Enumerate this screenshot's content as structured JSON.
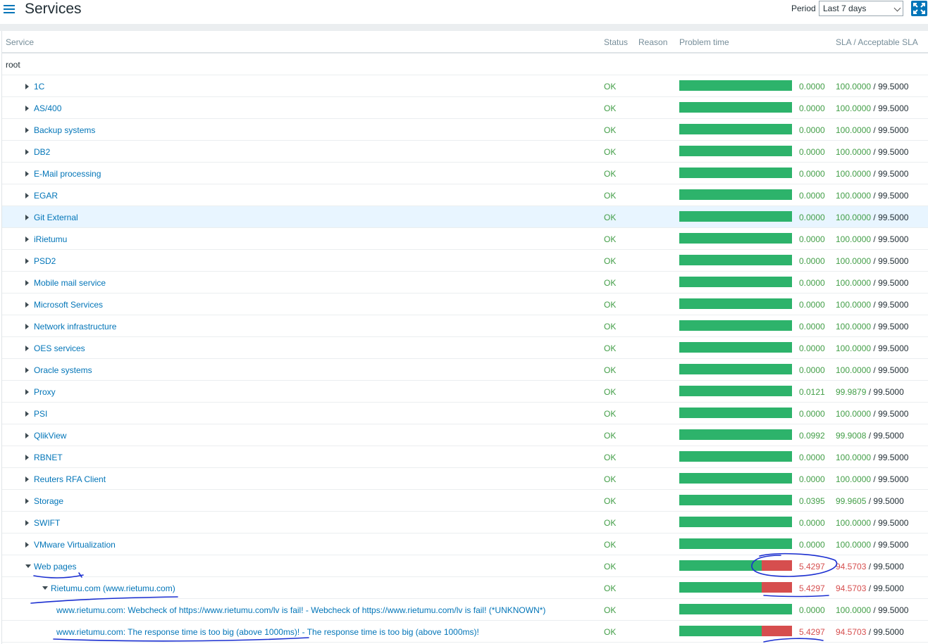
{
  "header": {
    "title": "Services",
    "period_label": "Period",
    "period_value": "Last 7 days"
  },
  "table": {
    "columns": {
      "service": "Service",
      "status": "Status",
      "reason": "Reason",
      "problem_time": "Problem time",
      "sla": "SLA / Acceptable SLA"
    },
    "root_label": "root",
    "rows": [
      {
        "name": "1C",
        "level": 1,
        "expand": "collapsed",
        "status": "OK",
        "problem_pct": 0,
        "problem_time": "0.0000",
        "sla": "100.0000",
        "acceptable_sla": "99.5000",
        "highlight": false
      },
      {
        "name": "AS/400",
        "level": 1,
        "expand": "collapsed",
        "status": "OK",
        "problem_pct": 0,
        "problem_time": "0.0000",
        "sla": "100.0000",
        "acceptable_sla": "99.5000",
        "highlight": false
      },
      {
        "name": "Backup systems",
        "level": 1,
        "expand": "collapsed",
        "status": "OK",
        "problem_pct": 0,
        "problem_time": "0.0000",
        "sla": "100.0000",
        "acceptable_sla": "99.5000",
        "highlight": false
      },
      {
        "name": "DB2",
        "level": 1,
        "expand": "collapsed",
        "status": "OK",
        "problem_pct": 0,
        "problem_time": "0.0000",
        "sla": "100.0000",
        "acceptable_sla": "99.5000",
        "highlight": false
      },
      {
        "name": "E-Mail processing",
        "level": 1,
        "expand": "collapsed",
        "status": "OK",
        "problem_pct": 0,
        "problem_time": "0.0000",
        "sla": "100.0000",
        "acceptable_sla": "99.5000",
        "highlight": false
      },
      {
        "name": "EGAR",
        "level": 1,
        "expand": "collapsed",
        "status": "OK",
        "problem_pct": 0,
        "problem_time": "0.0000",
        "sla": "100.0000",
        "acceptable_sla": "99.5000",
        "highlight": false
      },
      {
        "name": "Git External",
        "level": 1,
        "expand": "collapsed",
        "status": "OK",
        "problem_pct": 0,
        "problem_time": "0.0000",
        "sla": "100.0000",
        "acceptable_sla": "99.5000",
        "highlight": true
      },
      {
        "name": "iRietumu",
        "level": 1,
        "expand": "collapsed",
        "status": "OK",
        "problem_pct": 0,
        "problem_time": "0.0000",
        "sla": "100.0000",
        "acceptable_sla": "99.5000",
        "highlight": false
      },
      {
        "name": "PSD2",
        "level": 1,
        "expand": "collapsed",
        "status": "OK",
        "problem_pct": 0,
        "problem_time": "0.0000",
        "sla": "100.0000",
        "acceptable_sla": "99.5000",
        "highlight": false
      },
      {
        "name": "Mobile mail service",
        "level": 1,
        "expand": "collapsed",
        "status": "OK",
        "problem_pct": 0,
        "problem_time": "0.0000",
        "sla": "100.0000",
        "acceptable_sla": "99.5000",
        "highlight": false
      },
      {
        "name": "Microsoft Services",
        "level": 1,
        "expand": "collapsed",
        "status": "OK",
        "problem_pct": 0,
        "problem_time": "0.0000",
        "sla": "100.0000",
        "acceptable_sla": "99.5000",
        "highlight": false
      },
      {
        "name": "Network infrastructure",
        "level": 1,
        "expand": "collapsed",
        "status": "OK",
        "problem_pct": 0,
        "problem_time": "0.0000",
        "sla": "100.0000",
        "acceptable_sla": "99.5000",
        "highlight": false
      },
      {
        "name": "OES services",
        "level": 1,
        "expand": "collapsed",
        "status": "OK",
        "problem_pct": 0,
        "problem_time": "0.0000",
        "sla": "100.0000",
        "acceptable_sla": "99.5000",
        "highlight": false
      },
      {
        "name": "Oracle systems",
        "level": 1,
        "expand": "collapsed",
        "status": "OK",
        "problem_pct": 0,
        "problem_time": "0.0000",
        "sla": "100.0000",
        "acceptable_sla": "99.5000",
        "highlight": false
      },
      {
        "name": "Proxy",
        "level": 1,
        "expand": "collapsed",
        "status": "OK",
        "problem_pct": 0.0121,
        "problem_time": "0.0121",
        "sla": "99.9879",
        "acceptable_sla": "99.5000",
        "highlight": false
      },
      {
        "name": "PSI",
        "level": 1,
        "expand": "collapsed",
        "status": "OK",
        "problem_pct": 0,
        "problem_time": "0.0000",
        "sla": "100.0000",
        "acceptable_sla": "99.5000",
        "highlight": false
      },
      {
        "name": "QlikView",
        "level": 1,
        "expand": "collapsed",
        "status": "OK",
        "problem_pct": 0.0992,
        "problem_time": "0.0992",
        "sla": "99.9008",
        "acceptable_sla": "99.5000",
        "highlight": false
      },
      {
        "name": "RBNET",
        "level": 1,
        "expand": "collapsed",
        "status": "OK",
        "problem_pct": 0,
        "problem_time": "0.0000",
        "sla": "100.0000",
        "acceptable_sla": "99.5000",
        "highlight": false
      },
      {
        "name": "Reuters RFA Client",
        "level": 1,
        "expand": "collapsed",
        "status": "OK",
        "problem_pct": 0,
        "problem_time": "0.0000",
        "sla": "100.0000",
        "acceptable_sla": "99.5000",
        "highlight": false
      },
      {
        "name": "Storage",
        "level": 1,
        "expand": "collapsed",
        "status": "OK",
        "problem_pct": 0.0395,
        "problem_time": "0.0395",
        "sla": "99.9605",
        "acceptable_sla": "99.5000",
        "highlight": false
      },
      {
        "name": "SWIFT",
        "level": 1,
        "expand": "collapsed",
        "status": "OK",
        "problem_pct": 0,
        "problem_time": "0.0000",
        "sla": "100.0000",
        "acceptable_sla": "99.5000",
        "highlight": false
      },
      {
        "name": "VMware Virtualization",
        "level": 1,
        "expand": "collapsed",
        "status": "OK",
        "problem_pct": 0,
        "problem_time": "0.0000",
        "sla": "100.0000",
        "acceptable_sla": "99.5000",
        "highlight": false
      },
      {
        "name": "Web pages",
        "level": 1,
        "expand": "expanded",
        "status": "OK",
        "problem_pct": 5.4297,
        "problem_time": "5.4297",
        "sla": "94.5703",
        "acceptable_sla": "99.5000",
        "highlight": false
      },
      {
        "name": "Rietumu.com (www.rietumu.com)",
        "level": 2,
        "expand": "expanded",
        "status": "OK",
        "problem_pct": 5.4297,
        "problem_time": "5.4297",
        "sla": "94.5703",
        "acceptable_sla": "99.5000",
        "highlight": false
      },
      {
        "name": "www.rietumu.com: Webcheck of https://www.rietumu.com/lv is fail! - Webcheck of https://www.rietumu.com/lv is fail! (*UNKNOWN*)",
        "level": 3,
        "expand": "none",
        "status": "OK",
        "problem_pct": 0,
        "problem_time": "0.0000",
        "sla": "100.0000",
        "acceptable_sla": "99.5000",
        "highlight": false
      },
      {
        "name": "www.rietumu.com: The response time is too big (above 1000ms)! - The response time is too big (above 1000ms)!",
        "level": 3,
        "expand": "none",
        "status": "OK",
        "problem_pct": 5.4297,
        "problem_time": "5.4297",
        "sla": "94.5703",
        "acceptable_sla": "99.5000",
        "highlight": false
      }
    ]
  },
  "colors": {
    "accent": "#0275b8",
    "ok": "#429e47",
    "bar_ok": "#2db36b",
    "bar_problem": "#d64e4e",
    "annotation_ink": "#1b2fd1"
  }
}
